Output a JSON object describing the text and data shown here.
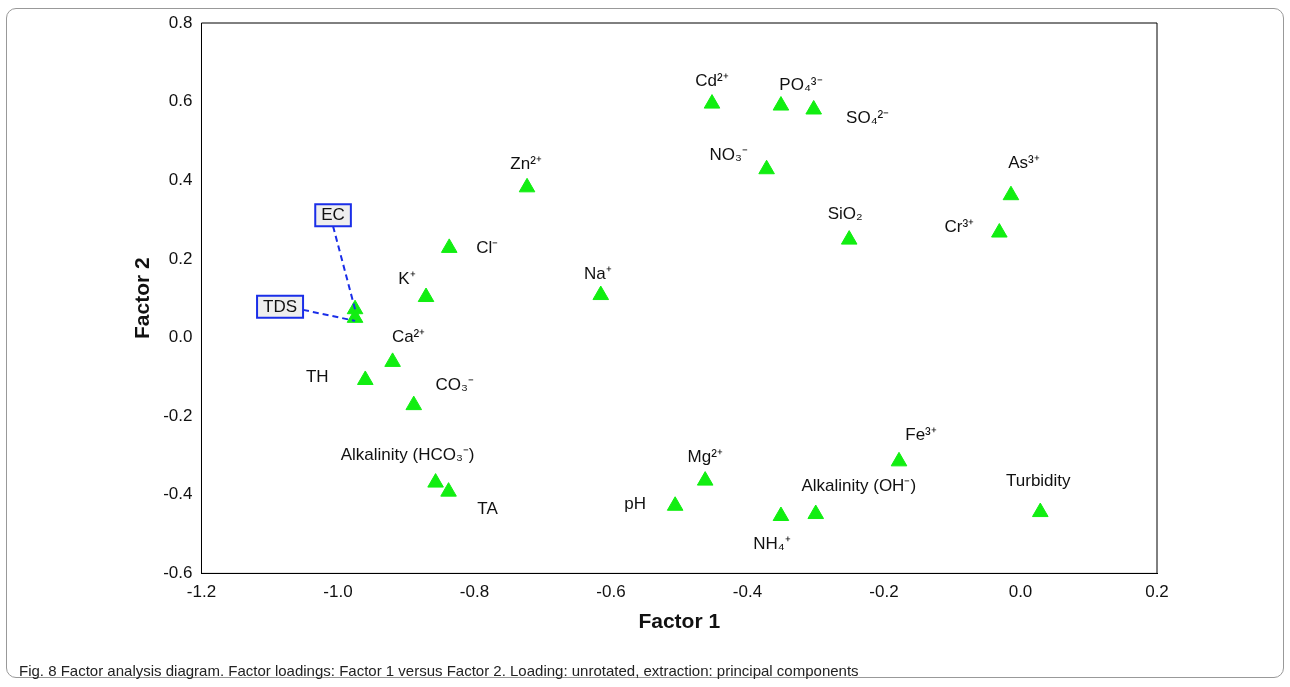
{
  "chart_data": {
    "type": "scatter",
    "xlabel": "Factor 1",
    "ylabel": "Factor 2",
    "x": [
      -0.452,
      -0.351,
      -0.303,
      -0.372,
      -0.014,
      -0.031,
      -0.251,
      -0.723,
      -0.837,
      -0.615,
      -0.871,
      -0.975,
      -0.975,
      -0.92,
      -0.96,
      -0.889,
      -0.857,
      -0.838,
      -0.506,
      -0.462,
      -0.351,
      -0.3,
      -0.178,
      0.029
    ],
    "series": [
      {
        "color": "#11ee11",
        "values": [
          0.595,
          0.59,
          0.58,
          0.428,
          0.362,
          0.267,
          0.249,
          0.382,
          0.228,
          0.108,
          0.103,
          0.072,
          0.05,
          -0.062,
          -0.108,
          -0.172,
          -0.369,
          -0.392,
          -0.428,
          -0.364,
          -0.454,
          -0.449,
          -0.315,
          -0.444
        ]
      }
    ],
    "marker": "triangle",
    "grid": false,
    "legend": false,
    "xlim": [
      -1.2,
      0.2
    ],
    "xticks": [
      -1.2,
      {
        "value": -1,
        "label": "-1.0"
      },
      -0.8,
      -0.6,
      -0.4,
      -0.2,
      {
        "value": 0,
        "label": "0.0"
      },
      0.2
    ],
    "ylim": [
      -0.6,
      0.8
    ],
    "yticks": [
      -0.6,
      -0.4,
      -0.2,
      {
        "value": 0,
        "label": "0.0"
      },
      0.2,
      0.4,
      0.6,
      0.8
    ],
    "annotations": [
      {
        "text": "Cd²⁺",
        "x": -0.452,
        "y": 0.595
      },
      {
        "text": "PO₄³⁻",
        "x": -0.351,
        "y": 0.59
      },
      {
        "text": "SO₄²⁻",
        "x": -0.303,
        "y": 0.58
      },
      {
        "text": "NO₃⁻",
        "x": -0.372,
        "y": 0.428
      },
      {
        "text": "As³⁺",
        "x": -0.014,
        "y": 0.362
      },
      {
        "text": "Cr³⁺",
        "x": -0.031,
        "y": 0.267
      },
      {
        "text": "SiO₂",
        "x": -0.251,
        "y": 0.249
      },
      {
        "text": "Zn²⁺",
        "x": -0.723,
        "y": 0.382
      },
      {
        "text": "Cl⁻",
        "x": -0.837,
        "y": 0.228
      },
      {
        "text": "Na⁺",
        "x": -0.615,
        "y": 0.108
      },
      {
        "text": "K⁺",
        "x": -0.871,
        "y": 0.103
      },
      {
        "text": "EC",
        "x": -0.975,
        "y": 0.072
      },
      {
        "text": "TDS",
        "x": -0.975,
        "y": 0.05
      },
      {
        "text": "Ca²⁺",
        "x": -0.92,
        "y": -0.062
      },
      {
        "text": "TH",
        "x": -0.96,
        "y": -0.108
      },
      {
        "text": "CO₃⁻",
        "x": -0.889,
        "y": -0.172
      },
      {
        "text": "Alkalinity (HCO₃⁻)",
        "x": -0.857,
        "y": -0.369
      },
      {
        "text": "TA",
        "x": -0.838,
        "y": -0.392
      },
      {
        "text": "pH",
        "x": -0.506,
        "y": -0.428
      },
      {
        "text": "Mg²⁺",
        "x": -0.462,
        "y": -0.364
      },
      {
        "text": "NH₄⁺",
        "x": -0.351,
        "y": -0.454
      },
      {
        "text": "Alkalinity (OH⁻)",
        "x": -0.3,
        "y": -0.449
      },
      {
        "text": "Fe³⁺",
        "x": -0.178,
        "y": -0.315
      },
      {
        "text": "Turbidity",
        "x": 0.029,
        "y": -0.444
      },
      "Fig. 8  Factor analysis diagram. Factor loadings: Factor 1 versus Factor 2. Loading: unrotated, extraction: principal components"
    ]
  }
}
